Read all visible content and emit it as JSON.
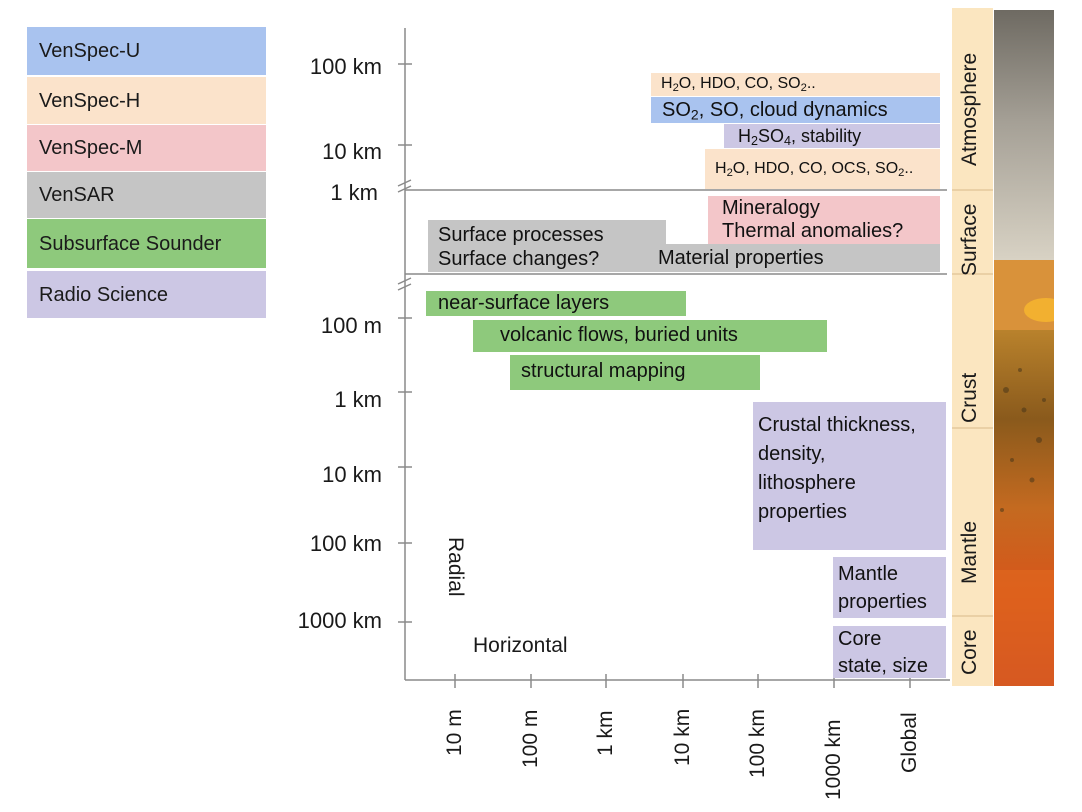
{
  "legend": [
    {
      "label": "VenSpec-U",
      "color": "#a9c3ef"
    },
    {
      "label": "VenSpec-H",
      "color": "#fbe3cb"
    },
    {
      "label": "VenSpec-M",
      "color": "#f3c6c9"
    },
    {
      "label": "VenSAR",
      "color": "#c5c5c5"
    },
    {
      "label": "Subsurface Sounder",
      "color": "#8ec97c"
    },
    {
      "label": "Radio Science",
      "color": "#ccc7e4"
    }
  ],
  "y_axis_upper": [
    "100 km",
    "10 km",
    "1 km"
  ],
  "y_axis_lower": [
    "100 m",
    "1 km",
    "10 km",
    "100 km",
    "1000 km"
  ],
  "x_axis": [
    "10 m",
    "100 m",
    "1 km",
    "10 km",
    "100 km",
    "1000 km",
    "Global"
  ],
  "axis_titles": {
    "radial": "Radial",
    "horizontal": "Horizontal"
  },
  "boxes": {
    "venspec_h_top": {
      "parts": [
        "H",
        "2",
        "O, HDO, CO, SO",
        "2",
        ".."
      ]
    },
    "venspec_u": {
      "parts": [
        "SO",
        "2",
        ", SO, cloud dynamics"
      ]
    },
    "venspec_m_top": {
      "parts": [
        "H",
        "2",
        "SO",
        "4",
        ", stability"
      ]
    },
    "venspec_h_bottom": {
      "parts": [
        "H",
        "2",
        "O, HDO, CO, OCS, SO",
        "2",
        ".."
      ]
    },
    "mineralogy": "Mineralogy",
    "thermal": "Thermal anomalies?",
    "surface_processes": "Surface processes",
    "surface_changes": "Surface changes?",
    "material": "Material properties",
    "near_surface": "near-surface layers",
    "volcanic": "volcanic flows, buried units",
    "structural": "structural mapping",
    "crustal": [
      "Crustal thickness,",
      "density,",
      "lithosphere",
      "properties"
    ],
    "mantle": [
      "Mantle",
      "properties"
    ],
    "core": [
      "Core",
      "state, size"
    ]
  },
  "layers": [
    "Atmosphere",
    "Surface",
    "Crust",
    "Mantle",
    "Core"
  ],
  "colors": {
    "layer_bar": "#fbe6c0",
    "axis": "#8a8a8a"
  }
}
